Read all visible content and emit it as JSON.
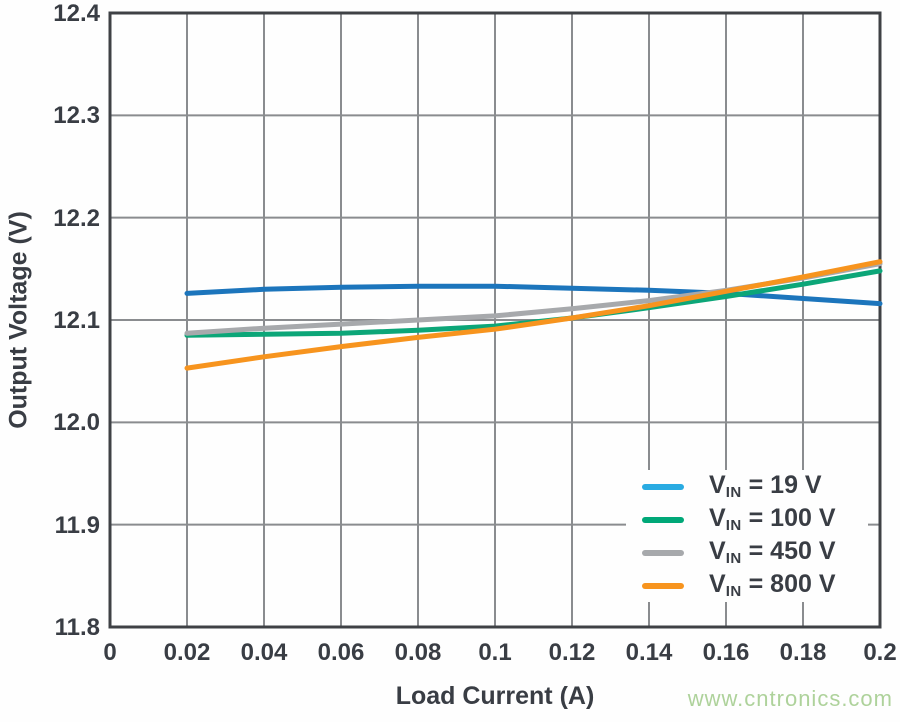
{
  "chart_data": {
    "type": "line",
    "title": "",
    "xlabel": "Load Current (A)",
    "ylabel": "Output Voltage (V)",
    "xlim": [
      0,
      0.2
    ],
    "ylim": [
      11.8,
      12.4
    ],
    "grid": true,
    "legend_position": "inside-bottom-right",
    "xticks": [
      0,
      0.02,
      0.04,
      0.06,
      0.08,
      0.1,
      0.12,
      0.14,
      0.16,
      0.18,
      0.2
    ],
    "xtick_labels": [
      "0",
      "0.02",
      "0.04",
      "0.06",
      "0.08",
      "0.1",
      "0.12",
      "0.14",
      "0.16",
      "0.18",
      "0.2"
    ],
    "yticks": [
      11.8,
      11.9,
      12.0,
      12.1,
      12.2,
      12.3,
      12.4
    ],
    "ytick_labels": [
      "11.8",
      "11.9",
      "12.0",
      "12.1",
      "12.2",
      "12.3",
      "12.4"
    ],
    "x": [
      0.02,
      0.04,
      0.06,
      0.08,
      0.1,
      0.12,
      0.14,
      0.16,
      0.18,
      0.2
    ],
    "series": [
      {
        "name": "VIN = 19 V",
        "color": "#1c75bc",
        "swatch": "#29abe2",
        "values": [
          12.126,
          12.13,
          12.132,
          12.133,
          12.133,
          12.131,
          12.129,
          12.126,
          12.121,
          12.116
        ]
      },
      {
        "name": "VIN = 100 V",
        "color": "#0ca678",
        "swatch": "#00a878",
        "values": [
          12.085,
          12.086,
          12.087,
          12.09,
          12.094,
          12.102,
          12.112,
          12.123,
          12.135,
          12.148
        ]
      },
      {
        "name": "VIN = 450 V",
        "color": "#a7a9ac",
        "swatch": "#a7a9ac",
        "values": [
          12.087,
          12.092,
          12.096,
          12.1,
          12.104,
          12.111,
          12.119,
          12.129,
          12.141,
          12.155
        ]
      },
      {
        "name": "VIN = 800 V",
        "color": "#f7941e",
        "swatch": "#f7941e",
        "values": [
          12.053,
          12.064,
          12.074,
          12.083,
          12.091,
          12.102,
          12.114,
          12.128,
          12.142,
          12.157
        ]
      }
    ]
  },
  "axes": {
    "xlabel": "Load Current (A)",
    "ylabel": "Output Voltage (V)"
  },
  "legend": {
    "items": [
      {
        "v": "V",
        "sub": "IN",
        "eq": " = 19 V"
      },
      {
        "v": "V",
        "sub": "IN",
        "eq": " = 100 V"
      },
      {
        "v": "V",
        "sub": "IN",
        "eq": " = 450 V"
      },
      {
        "v": "V",
        "sub": "IN",
        "eq": " = 800 V"
      }
    ]
  },
  "watermark": {
    "text": "www.cntronics.com",
    "color": "#aed29b"
  },
  "colors": {
    "grid": "#8a8c8f",
    "border": "#3f4145",
    "text": "#393d44",
    "background": "#fefefe"
  }
}
